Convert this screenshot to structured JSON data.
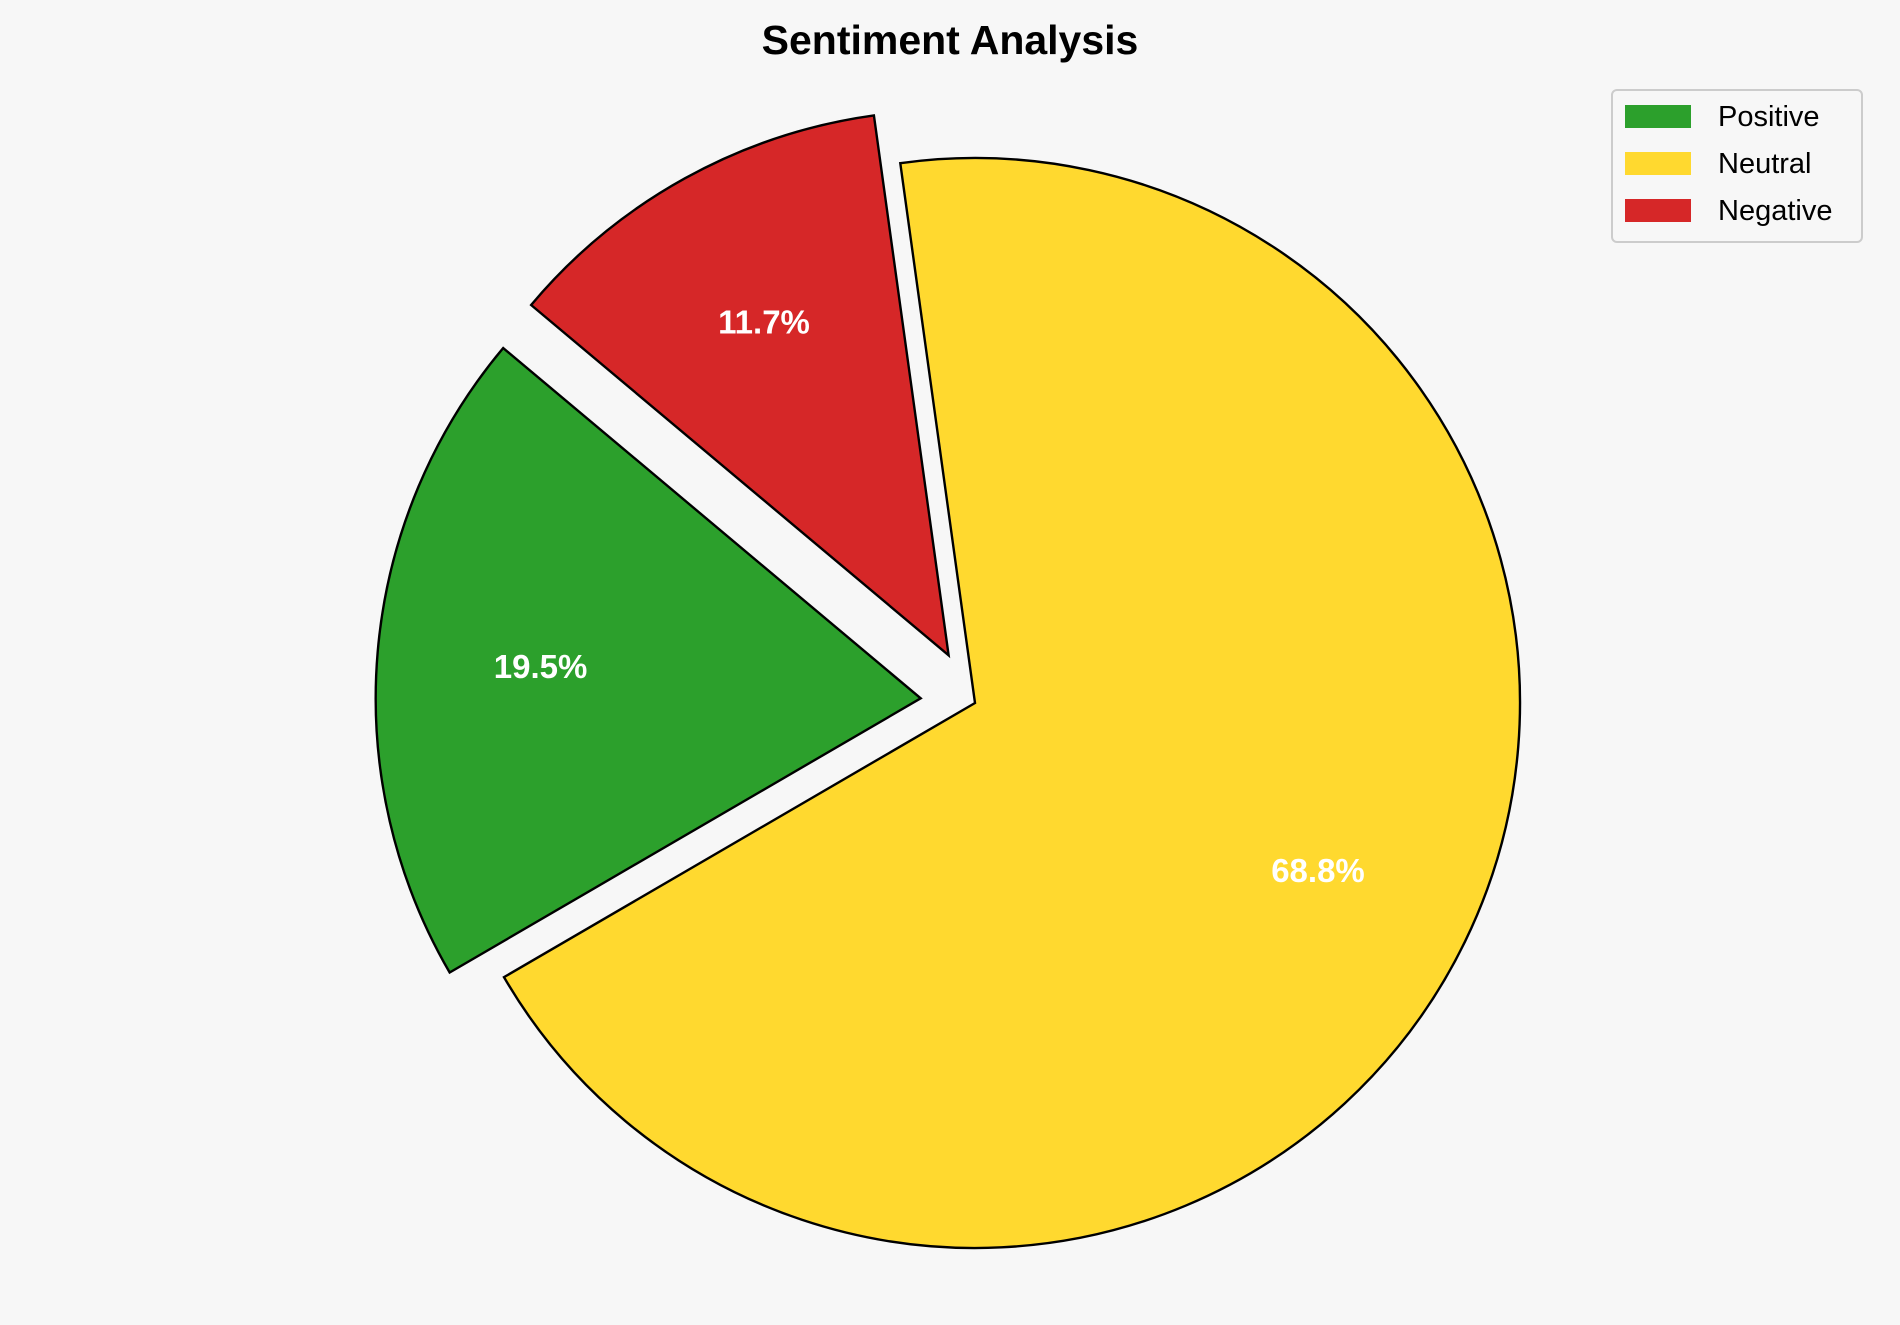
{
  "chart_data": {
    "type": "pie",
    "title": "Sentiment Analysis",
    "categories": [
      "Positive",
      "Neutral",
      "Negative"
    ],
    "values": [
      19.5,
      68.8,
      11.7
    ],
    "labels": [
      "19.5%",
      "68.8%",
      "11.7%"
    ],
    "colors": [
      "#2ca02c",
      "#ffd92f",
      "#d62728"
    ],
    "explode": [
      0.1,
      0,
      0.1
    ],
    "start_angle": 140,
    "direction": "counterclockwise",
    "legend_position": "top-right"
  }
}
